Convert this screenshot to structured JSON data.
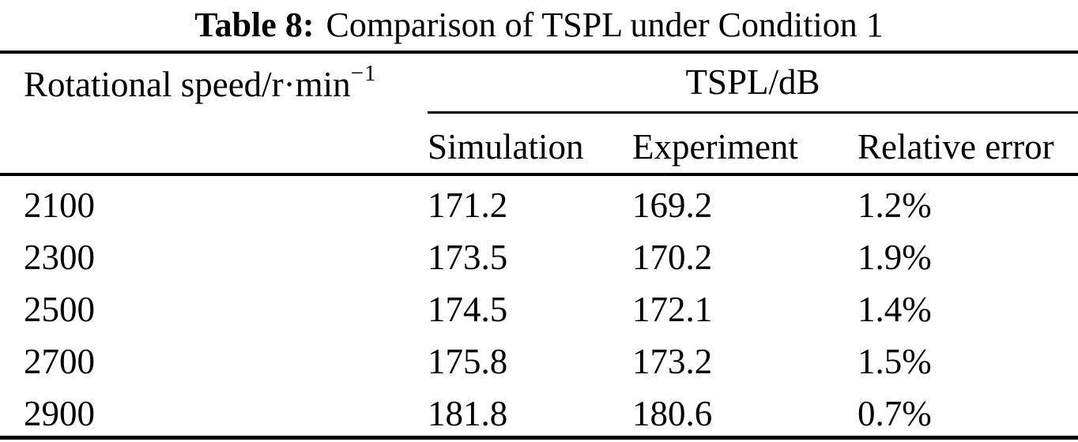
{
  "caption": {
    "label": "Table 8:",
    "text": "Comparison of TSPL under Condition 1"
  },
  "table": {
    "col1_header_main": "Rotational speed/r·min",
    "col1_header_sup": "−1",
    "group_header": "TSPL/dB",
    "subheaders": {
      "simulation": "Simulation",
      "experiment": "Experiment",
      "relative_error": "Relative error"
    },
    "rows": [
      {
        "speed": "2100",
        "simulation": "171.2",
        "experiment": "169.2",
        "relative_error": "1.2%"
      },
      {
        "speed": "2300",
        "simulation": "173.5",
        "experiment": "170.2",
        "relative_error": "1.9%"
      },
      {
        "speed": "2500",
        "simulation": "174.5",
        "experiment": "172.1",
        "relative_error": "1.4%"
      },
      {
        "speed": "2700",
        "simulation": "175.8",
        "experiment": "173.2",
        "relative_error": "1.5%"
      },
      {
        "speed": "2900",
        "simulation": "181.8",
        "experiment": "180.6",
        "relative_error": "0.7%"
      }
    ]
  }
}
